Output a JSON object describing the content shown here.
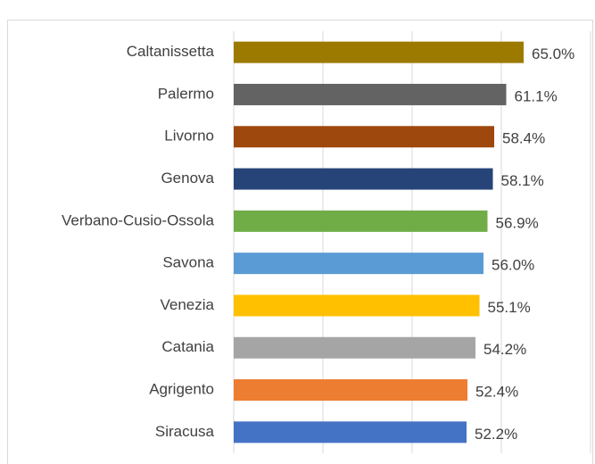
{
  "chart_data": {
    "type": "hbar",
    "categories": [
      "Caltanissetta",
      "Palermo",
      "Livorno",
      "Genova",
      "Verbano-Cusio-Ossola",
      "Savona",
      "Venezia",
      "Catania",
      "Agrigento",
      "Siracusa"
    ],
    "values": [
      65.0,
      61.1,
      58.4,
      58.1,
      56.9,
      56.0,
      55.1,
      54.2,
      52.4,
      52.2
    ],
    "value_labels": [
      "65.0%",
      "61.1%",
      "58.4%",
      "58.1%",
      "56.9%",
      "56.0%",
      "55.1%",
      "54.2%",
      "52.4%",
      "52.2%"
    ],
    "colors": [
      "#9c7a00",
      "#636363",
      "#9e480e",
      "#264478",
      "#70ad47",
      "#5b9bd5",
      "#ffc000",
      "#a5a5a5",
      "#ed7d31",
      "#4472c4"
    ],
    "xlim": [
      0,
      80
    ],
    "xticks": [
      0,
      20,
      40,
      60,
      80
    ],
    "grid": true
  }
}
